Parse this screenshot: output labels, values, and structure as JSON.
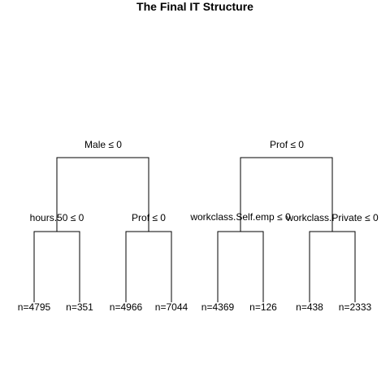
{
  "title": "The Final IT Structure",
  "nodes": [
    {
      "id": "left-split",
      "label": "Male ≤ 0"
    },
    {
      "id": "right-split",
      "label": "Prof ≤ 0"
    },
    {
      "id": "ll-split",
      "label": "hours.50 ≤ 0"
    },
    {
      "id": "lr-split",
      "label": "Prof ≤ 0"
    },
    {
      "id": "rl-split",
      "label": "workclass.Self.emp ≤ 0"
    },
    {
      "id": "rr-split",
      "label": "workclass.Private ≤ 0"
    }
  ],
  "leaves": [
    "n=4795",
    "n=351",
    "n=4966",
    "n=7044",
    "n=4369",
    "n=126",
    "n=438",
    "n=2333"
  ]
}
